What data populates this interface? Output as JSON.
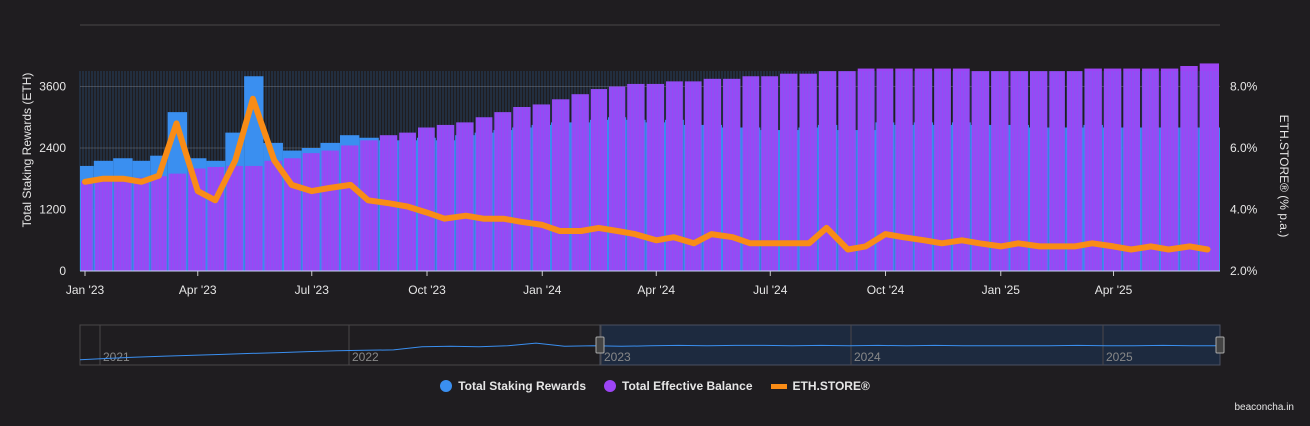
{
  "chart_data": {
    "type": "bar+line",
    "yaxis_left": {
      "label": "Total Staking Rewards (ETH)",
      "ticks": [
        0,
        1200,
        2400,
        3600
      ],
      "range": [
        0,
        4800
      ]
    },
    "yaxis_right": {
      "label": "ETH.STORE® (% p.a.)",
      "ticks": [
        "2.0%",
        "4.0%",
        "6.0%",
        "8.0%"
      ],
      "range": [
        2.0,
        10.0
      ]
    },
    "xaxis": {
      "ticks": [
        "Jan '23",
        "Apr '23",
        "Jul '23",
        "Oct '23",
        "Jan '24",
        "Apr '24",
        "Jul '24",
        "Oct '24",
        "Jan '25",
        "Apr '25"
      ],
      "tick_dates": [
        "2023-01-01",
        "2023-04-01",
        "2023-07-01",
        "2023-10-01",
        "2024-01-01",
        "2024-04-01",
        "2024-07-01",
        "2024-10-01",
        "2025-01-01",
        "2025-04-01"
      ]
    },
    "grid": "horizontal",
    "legend_position": "bottom",
    "x": [
      "2023-01-01",
      "2023-01-15",
      "2023-02-01",
      "2023-02-15",
      "2023-03-01",
      "2023-03-15",
      "2023-04-01",
      "2023-04-15",
      "2023-05-01",
      "2023-05-15",
      "2023-06-01",
      "2023-06-15",
      "2023-07-01",
      "2023-07-15",
      "2023-08-01",
      "2023-08-15",
      "2023-09-01",
      "2023-09-15",
      "2023-10-01",
      "2023-10-15",
      "2023-11-01",
      "2023-11-15",
      "2023-12-01",
      "2023-12-15",
      "2024-01-01",
      "2024-01-15",
      "2024-02-01",
      "2024-02-15",
      "2024-03-01",
      "2024-03-15",
      "2024-04-01",
      "2024-04-15",
      "2024-05-01",
      "2024-05-15",
      "2024-06-01",
      "2024-06-15",
      "2024-07-01",
      "2024-07-15",
      "2024-08-01",
      "2024-08-15",
      "2024-09-01",
      "2024-09-15",
      "2024-10-01",
      "2024-10-15",
      "2024-11-01",
      "2024-11-15",
      "2024-12-01",
      "2024-12-15",
      "2025-01-01",
      "2025-01-15",
      "2025-02-01",
      "2025-02-15",
      "2025-03-01",
      "2025-03-15",
      "2025-04-01",
      "2025-04-15",
      "2025-05-01",
      "2025-05-15",
      "2025-06-01",
      "2025-06-15"
    ],
    "series": [
      {
        "name": "Total Staking Rewards",
        "type": "bar",
        "axis": "left",
        "color": "#3a8ff0",
        "values": [
          2050,
          2150,
          2200,
          2150,
          2250,
          3100,
          2200,
          2150,
          2700,
          3800,
          2500,
          2350,
          2400,
          2500,
          2650,
          2600,
          2550,
          2550,
          2600,
          2550,
          2650,
          2700,
          2750,
          2800,
          2850,
          2900,
          2900,
          2950,
          3000,
          2950,
          2900,
          2950,
          2850,
          2850,
          2800,
          2800,
          2750,
          2750,
          2800,
          2850,
          2750,
          2750,
          2900,
          2850,
          2900,
          2850,
          2900,
          2850,
          2850,
          2850,
          2800,
          2800,
          2800,
          2850,
          2800,
          2800,
          2800,
          2800,
          2800,
          2800
        ]
      },
      {
        "name": "Total Effective Balance",
        "type": "bar",
        "axis": "left",
        "color": "#9d45f5",
        "values": [
          1750,
          1780,
          1800,
          1820,
          1850,
          1900,
          2000,
          2030,
          2050,
          2050,
          2150,
          2200,
          2300,
          2350,
          2450,
          2550,
          2650,
          2700,
          2800,
          2850,
          2900,
          3000,
          3100,
          3200,
          3250,
          3350,
          3450,
          3550,
          3600,
          3650,
          3650,
          3700,
          3700,
          3750,
          3750,
          3800,
          3800,
          3850,
          3850,
          3900,
          3900,
          3950,
          3950,
          3950,
          3950,
          3950,
          3950,
          3900,
          3900,
          3900,
          3900,
          3900,
          3900,
          3950,
          3950,
          3950,
          3950,
          3950,
          4000,
          4050
        ]
      },
      {
        "name": "ETH.STORE®",
        "type": "line",
        "axis": "right",
        "color": "#f98c16",
        "values": [
          4.9,
          5.0,
          5.0,
          4.9,
          5.1,
          6.8,
          4.6,
          4.3,
          5.6,
          7.6,
          5.6,
          4.8,
          4.6,
          4.7,
          4.8,
          4.3,
          4.2,
          4.1,
          3.9,
          3.7,
          3.8,
          3.7,
          3.7,
          3.6,
          3.5,
          3.3,
          3.3,
          3.4,
          3.3,
          3.2,
          3.0,
          3.1,
          2.9,
          3.2,
          3.1,
          2.9,
          2.9,
          2.9,
          2.9,
          3.4,
          2.7,
          2.8,
          3.2,
          3.1,
          3.0,
          2.9,
          3.0,
          2.9,
          2.8,
          2.9,
          2.8,
          2.8,
          2.8,
          2.9,
          2.8,
          2.7,
          2.8,
          2.7,
          2.8,
          2.7
        ]
      }
    ],
    "navigator": {
      "labels": [
        "2021",
        "2022",
        "2023",
        "2024",
        "2025"
      ],
      "selected_range": [
        "2023-01-01",
        "2025-06-15"
      ],
      "values": [
        0.5,
        0.8,
        1.1,
        1.3,
        1.5,
        1.7,
        1.9,
        2.1,
        2.3,
        2.5,
        2.6,
        2.7,
        3.4,
        3.5,
        3.4,
        3.6,
        4.2,
        3.5,
        3.6,
        3.5,
        3.6,
        3.7,
        3.6,
        3.7,
        3.7,
        3.6,
        3.7,
        3.6,
        3.7,
        3.6,
        3.7,
        3.6,
        3.6,
        3.6,
        3.6,
        3.7,
        3.6,
        3.6,
        3.7,
        3.6,
        3.6
      ]
    }
  },
  "legend": [
    {
      "label": "Total Staking Rewards",
      "color": "#3a8ff0"
    },
    {
      "label": "Total Effective Balance",
      "color": "#9d45f5"
    },
    {
      "label": "ETH.STORE®",
      "color": "#f98c16"
    }
  ],
  "credit": "beaconcha.in"
}
